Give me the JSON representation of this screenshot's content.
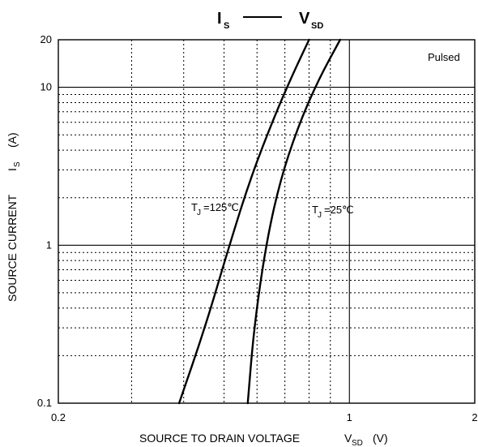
{
  "chart_data": {
    "type": "line",
    "title": {
      "left_main": "I",
      "left_sub": "S",
      "right_main": "V",
      "right_sub": "SD"
    },
    "xlabel": {
      "main": "SOURCE TO DRAIN VOLTAGE",
      "symbol": "V",
      "subscript": "SD",
      "unit": "(V)"
    },
    "ylabel": {
      "main": "SOURCE CURRENT",
      "symbol": "I",
      "subscript": "S",
      "unit": "(A)"
    },
    "xlim": [
      0.2,
      2
    ],
    "ylim": [
      0.1,
      20
    ],
    "x_scale": "log",
    "y_scale": "log",
    "grid": true,
    "x_ticks": [
      {
        "value": 0.2,
        "label": "0.2"
      },
      {
        "value": 1,
        "label": "1"
      },
      {
        "value": 2,
        "label": "2"
      }
    ],
    "y_ticks": [
      {
        "value": 0.1,
        "label": "0.1"
      },
      {
        "value": 1,
        "label": "1"
      },
      {
        "value": 10,
        "label": "10"
      },
      {
        "value": 20,
        "label": "20"
      }
    ],
    "annotation": "Pulsed",
    "series": [
      {
        "name": "TJ=125℃",
        "label": {
          "t": "T",
          "sub": "J",
          "rest": "=125℃"
        },
        "color": "#000000",
        "points": [
          [
            0.39,
            0.1
          ],
          [
            0.45,
            0.3
          ],
          [
            0.515,
            1.0
          ],
          [
            0.58,
            2.7
          ],
          [
            0.66,
            6.5
          ],
          [
            0.73,
            12.0
          ],
          [
            0.8,
            20.0
          ]
        ]
      },
      {
        "name": "TJ=25℃",
        "label": {
          "t": "T",
          "sub": "J",
          "rest": "=25℃"
        },
        "color": "#000000",
        "points": [
          [
            0.57,
            0.1
          ],
          [
            0.59,
            0.3
          ],
          [
            0.63,
            1.0
          ],
          [
            0.68,
            2.5
          ],
          [
            0.75,
            5.5
          ],
          [
            0.84,
            11.0
          ],
          [
            0.95,
            20.0
          ]
        ]
      }
    ]
  }
}
